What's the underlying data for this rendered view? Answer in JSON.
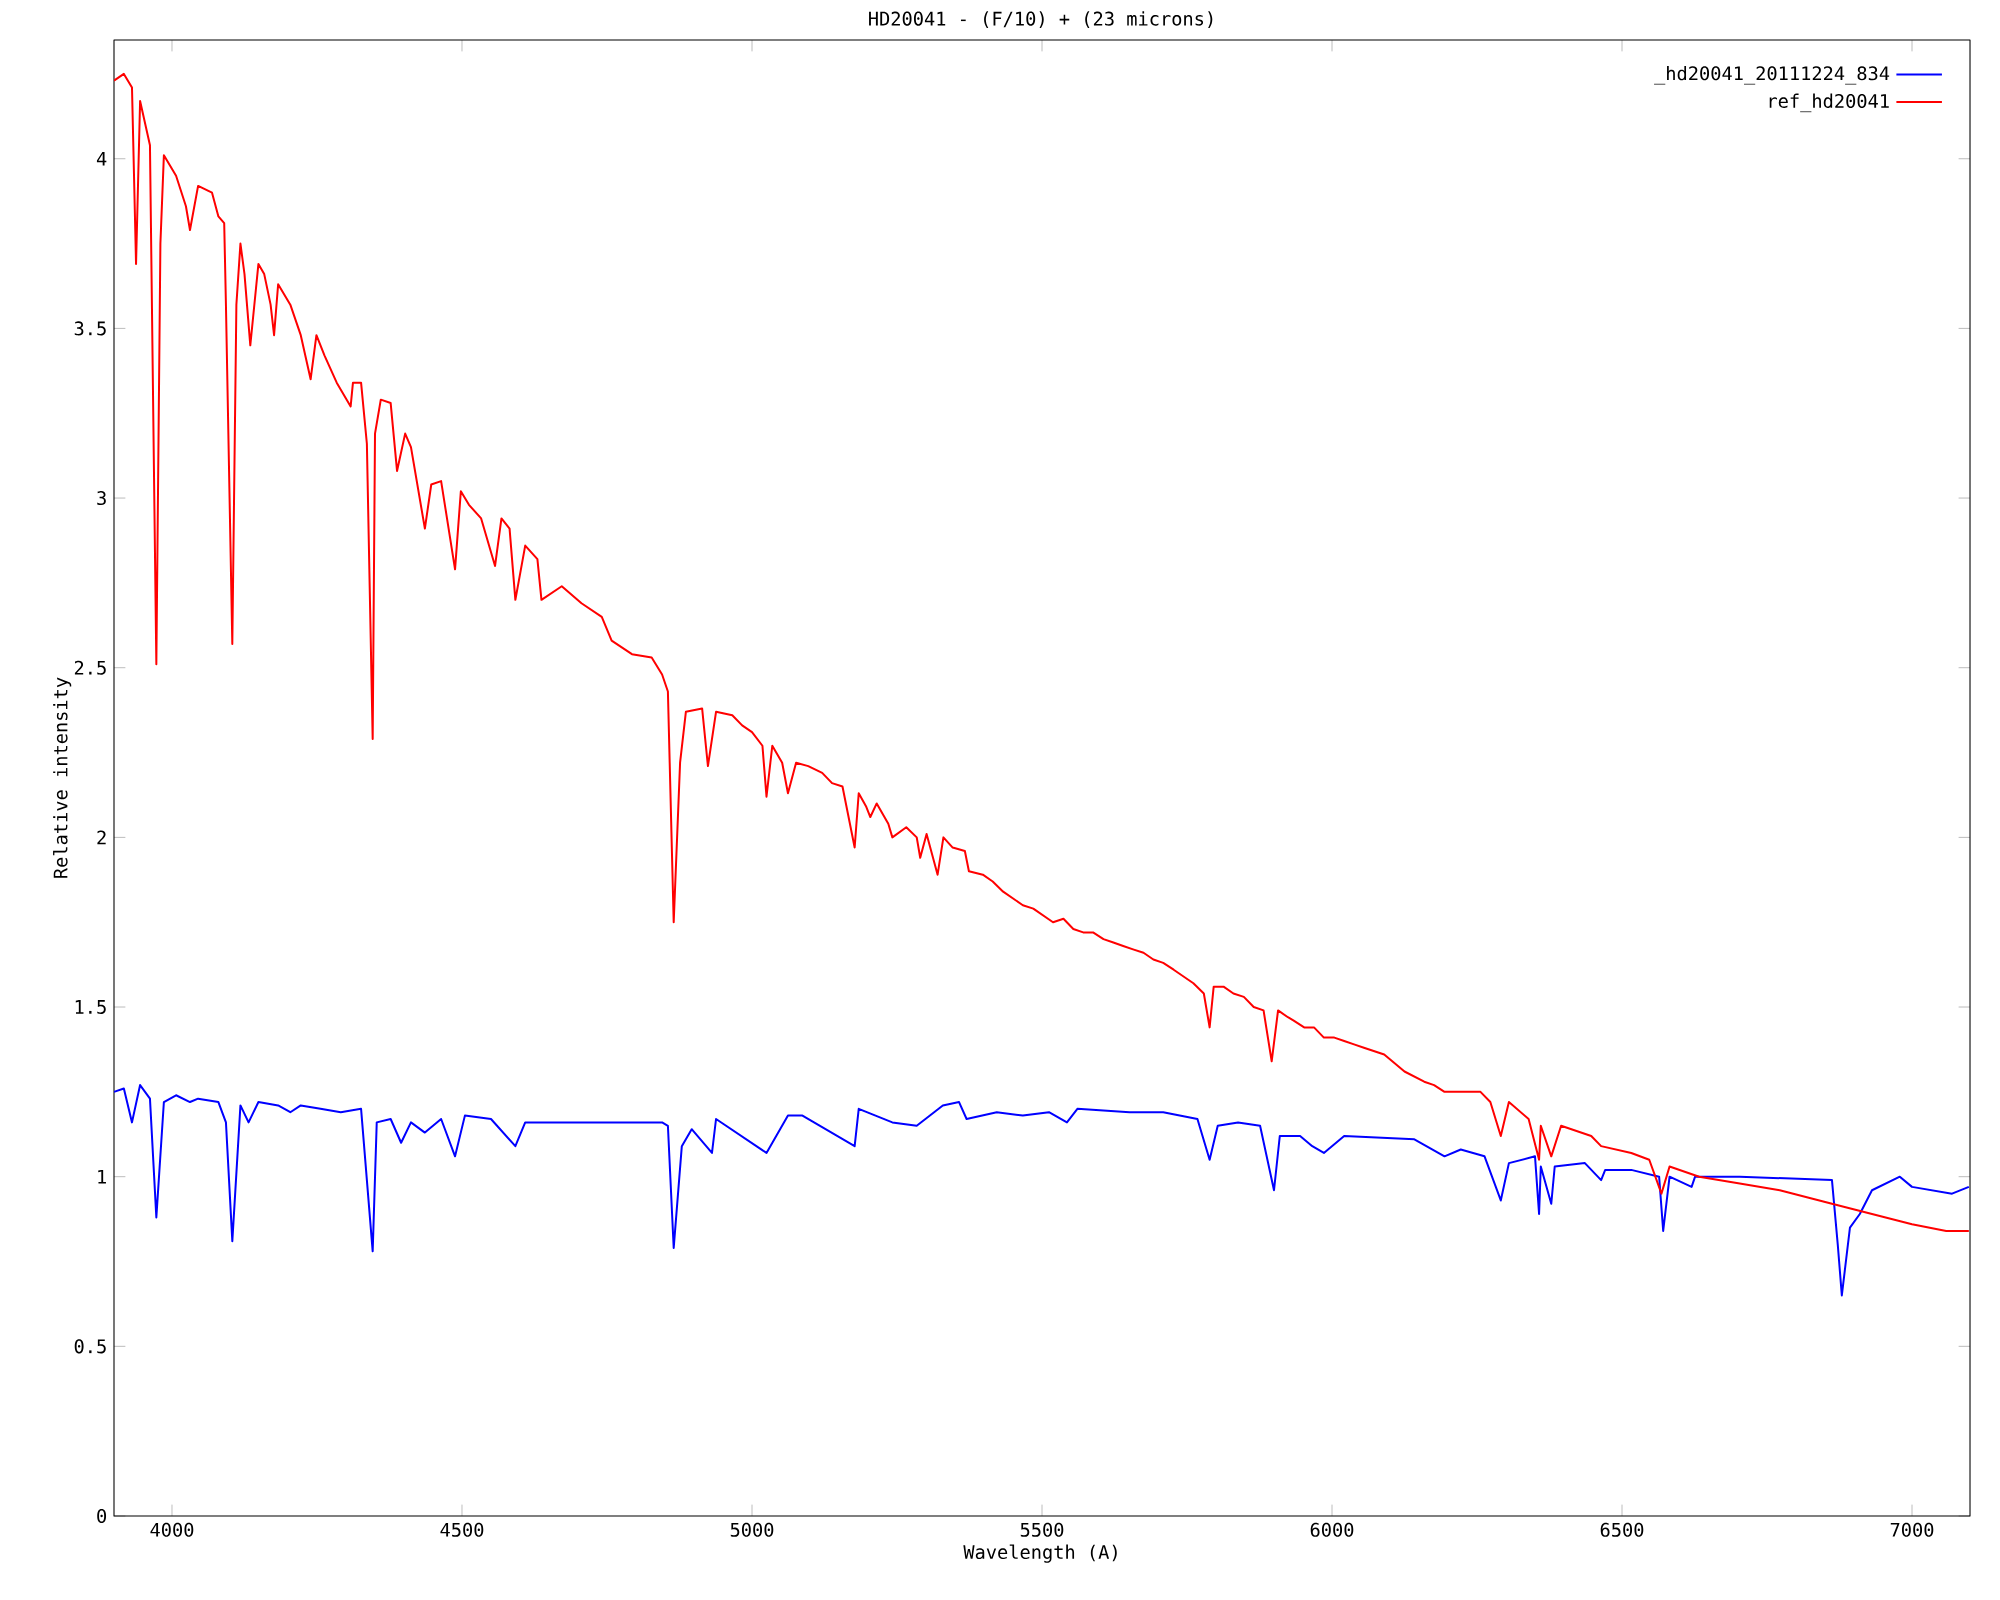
{
  "chart_data": {
    "type": "line",
    "title": "HD20041 - (F/10) + (23 microns)",
    "xlabel": "Wavelength (A)",
    "ylabel": "Relative intensity",
    "xlim": [
      3900,
      7100
    ],
    "ylim": [
      0,
      4.35
    ],
    "xticks": [
      4000,
      4500,
      5000,
      5500,
      6000,
      6500,
      7000
    ],
    "yticks": [
      0,
      0.5,
      1,
      1.5,
      2,
      2.5,
      3,
      3.5,
      4
    ],
    "legend": "top right",
    "marker": "none",
    "line_style": "solid",
    "grid": false,
    "series": [
      {
        "name": "_hd20041_20111224_834",
        "color": "#0000ff",
        "x": [
          3900,
          3917,
          3931,
          3945,
          3962,
          3973,
          3986,
          4007,
          4031,
          4045,
          4080,
          4093,
          4104,
          4118,
          4132,
          4149,
          4183,
          4204,
          4222,
          4256,
          4291,
          4326,
          4346,
          4353,
          4377,
          4395,
          4412,
          4436,
          4464,
          4488,
          4505,
          4550,
          4592,
          4609,
          4672,
          4741,
          4845,
          4855,
          4865,
          4879,
          4896,
          4931,
          4938,
          5025,
          5062,
          5087,
          5177,
          5184,
          5242,
          5284,
          5329,
          5357,
          5370,
          5422,
          5467,
          5512,
          5543,
          5561,
          5651,
          5709,
          5768,
          5789,
          5803,
          5838,
          5876,
          5900,
          5910,
          5945,
          5966,
          5986,
          6021,
          6142,
          6194,
          6222,
          6263,
          6291,
          6305,
          6350,
          6357,
          6360,
          6378,
          6384,
          6436,
          6464,
          6471,
          6516,
          6564,
          6571,
          6582,
          6620,
          6626,
          6703,
          6862,
          6872,
          6879,
          6893,
          6910,
          6931,
          6979,
          7000,
          7069,
          7098
        ],
        "values": [
          1.25,
          1.26,
          1.16,
          1.27,
          1.23,
          0.88,
          1.22,
          1.24,
          1.22,
          1.23,
          1.22,
          1.16,
          0.81,
          1.21,
          1.16,
          1.22,
          1.21,
          1.19,
          1.21,
          1.2,
          1.19,
          1.2,
          0.78,
          1.16,
          1.17,
          1.1,
          1.16,
          1.13,
          1.17,
          1.06,
          1.18,
          1.17,
          1.09,
          1.16,
          1.16,
          1.16,
          1.16,
          1.15,
          0.79,
          1.09,
          1.14,
          1.07,
          1.17,
          1.07,
          1.18,
          1.18,
          1.09,
          1.2,
          1.16,
          1.15,
          1.21,
          1.22,
          1.17,
          1.19,
          1.18,
          1.19,
          1.16,
          1.2,
          1.19,
          1.19,
          1.17,
          1.05,
          1.15,
          1.16,
          1.15,
          0.96,
          1.12,
          1.12,
          1.09,
          1.07,
          1.12,
          1.11,
          1.06,
          1.08,
          1.06,
          0.93,
          1.04,
          1.06,
          0.89,
          1.03,
          0.92,
          1.03,
          1.04,
          0.99,
          1.02,
          1.02,
          1.0,
          0.84,
          1.0,
          0.97,
          1.0,
          1.0,
          0.99,
          0.8,
          0.65,
          0.85,
          0.89,
          0.96,
          1.0,
          0.97,
          0.95,
          0.97
        ]
      },
      {
        "name": "ref_hd20041",
        "color": "#ff0000",
        "x": [
          3900,
          3917,
          3931,
          3938,
          3945,
          3962,
          3973,
          3980,
          3986,
          4007,
          4024,
          4031,
          4045,
          4069,
          4080,
          4090,
          4093,
          4104,
          4111,
          4118,
          4125,
          4135,
          4149,
          4159,
          4170,
          4176,
          4183,
          4204,
          4222,
          4239,
          4249,
          4263,
          4284,
          4308,
          4312,
          4326,
          4336,
          4346,
          4350,
          4360,
          4377,
          4388,
          4402,
          4412,
          4436,
          4447,
          4464,
          4488,
          4498,
          4512,
          4533,
          4557,
          4568,
          4582,
          4592,
          4609,
          4630,
          4637,
          4672,
          4706,
          4741,
          4758,
          4793,
          4827,
          4845,
          4855,
          4865,
          4876,
          4886,
          4914,
          4924,
          4938,
          4966,
          4983,
          5000,
          5018,
          5025,
          5035,
          5052,
          5062,
          5076,
          5097,
          5121,
          5138,
          5156,
          5177,
          5184,
          5197,
          5204,
          5215,
          5235,
          5242,
          5266,
          5284,
          5290,
          5301,
          5320,
          5330,
          5346,
          5367,
          5374,
          5398,
          5415,
          5433,
          5450,
          5467,
          5485,
          5502,
          5519,
          5537,
          5554,
          5571,
          5588,
          5606,
          5623,
          5640,
          5657,
          5675,
          5692,
          5709,
          5727,
          5744,
          5761,
          5779,
          5789,
          5796,
          5813,
          5830,
          5848,
          5865,
          5882,
          5896,
          5907,
          5924,
          5934,
          5952,
          5969,
          5986,
          6004,
          6021,
          6038,
          6055,
          6090,
          6125,
          6159,
          6176,
          6194,
          6256,
          6273,
          6291,
          6305,
          6339,
          6357,
          6360,
          6378,
          6395,
          6447,
          6464,
          6516,
          6547,
          6568,
          6582,
          6633,
          6703,
          6772,
          6862,
          6931,
          7000,
          7059,
          7098
        ],
        "values": [
          4.23,
          4.25,
          4.21,
          3.69,
          4.17,
          4.04,
          2.51,
          3.75,
          4.01,
          3.95,
          3.86,
          3.79,
          3.92,
          3.9,
          3.83,
          3.81,
          3.57,
          2.57,
          3.57,
          3.75,
          3.66,
          3.45,
          3.69,
          3.66,
          3.57,
          3.48,
          3.63,
          3.57,
          3.48,
          3.35,
          3.48,
          3.42,
          3.34,
          3.27,
          3.34,
          3.34,
          3.16,
          2.29,
          3.19,
          3.29,
          3.28,
          3.08,
          3.19,
          3.15,
          2.91,
          3.04,
          3.05,
          2.79,
          3.02,
          2.98,
          2.94,
          2.8,
          2.94,
          2.91,
          2.7,
          2.86,
          2.82,
          2.7,
          2.74,
          2.69,
          2.65,
          2.58,
          2.54,
          2.53,
          2.48,
          2.43,
          1.75,
          2.22,
          2.37,
          2.38,
          2.21,
          2.37,
          2.36,
          2.33,
          2.31,
          2.27,
          2.12,
          2.27,
          2.22,
          2.13,
          2.22,
          2.21,
          2.19,
          2.16,
          2.15,
          1.97,
          2.13,
          2.09,
          2.06,
          2.1,
          2.04,
          2.0,
          2.03,
          2.0,
          1.94,
          2.01,
          1.89,
          2.0,
          1.97,
          1.96,
          1.9,
          1.89,
          1.87,
          1.84,
          1.82,
          1.8,
          1.79,
          1.77,
          1.75,
          1.76,
          1.73,
          1.72,
          1.72,
          1.7,
          1.69,
          1.68,
          1.67,
          1.66,
          1.64,
          1.63,
          1.61,
          1.59,
          1.57,
          1.54,
          1.44,
          1.56,
          1.56,
          1.54,
          1.53,
          1.5,
          1.49,
          1.34,
          1.49,
          1.47,
          1.46,
          1.44,
          1.44,
          1.41,
          1.41,
          1.4,
          1.39,
          1.38,
          1.36,
          1.31,
          1.28,
          1.27,
          1.25,
          1.25,
          1.22,
          1.12,
          1.22,
          1.17,
          1.05,
          1.15,
          1.06,
          1.15,
          1.12,
          1.09,
          1.07,
          1.05,
          0.95,
          1.03,
          1.0,
          0.98,
          0.96,
          0.92,
          0.89,
          0.86,
          0.84,
          0.84
        ]
      }
    ]
  }
}
